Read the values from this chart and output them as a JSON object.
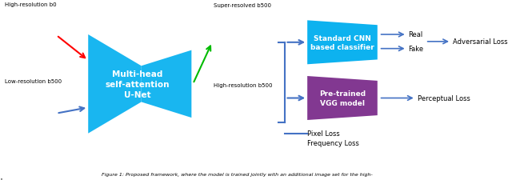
{
  "fig_width": 6.4,
  "fig_height": 2.26,
  "dpi": 100,
  "bg_color": "#ffffff",
  "caption": "Figure 1: Proposed framework, where the model is trained jointly with an additional image set for the high-",
  "unet_color": "#00AEEF",
  "unet_text": "Multi-head\nself-attention\nU-Net",
  "cnn_color": "#00AEEF",
  "cnn_text": "Standard CNN\nbased classifier",
  "vgg_color": "#7B2D8B",
  "vgg_text": "Pre-trained\nVGG model",
  "img1_label": "High-resolution b0",
  "img2_label": "Low-resolution b500",
  "img3_label": "Super-resolved b500",
  "img4_label": "High-resolution b500",
  "loss1": "Adversarial Loss",
  "loss2": "Perceptual Loss",
  "loss3_l1": "Pixel Loss",
  "loss3_l2": "Frequency Loss",
  "real_label": "Real",
  "fake_label": "Fake",
  "arrow_color": "#4472C4",
  "red_arrow_color": "#FF0000",
  "green_arrow_color": "#00BB00"
}
